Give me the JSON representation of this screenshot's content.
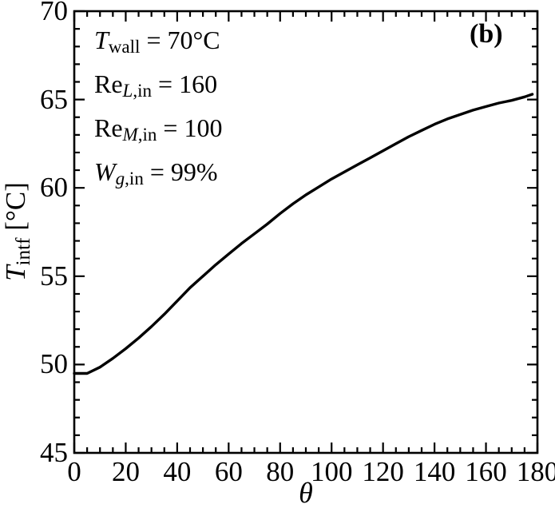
{
  "figure": {
    "panel_label": "(b)",
    "annotations": [
      {
        "segments": [
          {
            "t": "T",
            "i": true
          },
          {
            "t": "wall",
            "sub": true
          },
          {
            "t": " = 70°C"
          }
        ]
      },
      {
        "segments": [
          {
            "t": "Re"
          },
          {
            "t": "L",
            "i": true,
            "sub": true
          },
          {
            "t": ",in",
            "sub": true
          },
          {
            "t": " = 160"
          }
        ]
      },
      {
        "segments": [
          {
            "t": "Re"
          },
          {
            "t": "M",
            "i": true,
            "sub": true
          },
          {
            "t": ",in",
            "sub": true
          },
          {
            "t": " = 100"
          }
        ]
      },
      {
        "segments": [
          {
            "t": "W",
            "i": true
          },
          {
            "t": "g",
            "i": true,
            "sub": true
          },
          {
            "t": ",in",
            "sub": true
          },
          {
            "t": " = 99%"
          }
        ]
      }
    ]
  },
  "chart_data": {
    "type": "line",
    "title": "",
    "xlabel": "θ",
    "ylabel": "T_intf [°C]",
    "xlabel_segments": [
      {
        "t": "θ",
        "i": true
      }
    ],
    "ylabel_segments": [
      {
        "t": "T",
        "i": true
      },
      {
        "t": "intf",
        "sub": true
      },
      {
        "t": " [°C]"
      }
    ],
    "xlim": [
      0,
      180
    ],
    "ylim": [
      45,
      70
    ],
    "x_major_ticks": [
      0,
      20,
      40,
      60,
      80,
      100,
      120,
      140,
      160,
      180
    ],
    "x_minor_step": 5,
    "y_major_ticks": [
      45,
      50,
      55,
      60,
      65,
      70
    ],
    "y_minor_step": 1,
    "grid": false,
    "legend": "none",
    "axis_color": "#000000",
    "line_color": "#000000",
    "background": "#ffffff",
    "series": [
      {
        "name": "interface temperature",
        "x": [
          0,
          5,
          10,
          15,
          20,
          25,
          30,
          35,
          40,
          45,
          50,
          55,
          60,
          65,
          70,
          75,
          80,
          85,
          90,
          95,
          100,
          105,
          110,
          115,
          120,
          125,
          130,
          135,
          140,
          145,
          150,
          155,
          160,
          165,
          170,
          175,
          178
        ],
        "y": [
          49.5,
          49.5,
          49.85,
          50.35,
          50.9,
          51.5,
          52.15,
          52.85,
          53.6,
          54.35,
          55.0,
          55.65,
          56.25,
          56.85,
          57.4,
          57.95,
          58.55,
          59.1,
          59.6,
          60.05,
          60.5,
          60.9,
          61.3,
          61.7,
          62.1,
          62.5,
          62.9,
          63.25,
          63.6,
          63.9,
          64.15,
          64.4,
          64.6,
          64.8,
          64.95,
          65.15,
          65.3
        ]
      }
    ]
  }
}
